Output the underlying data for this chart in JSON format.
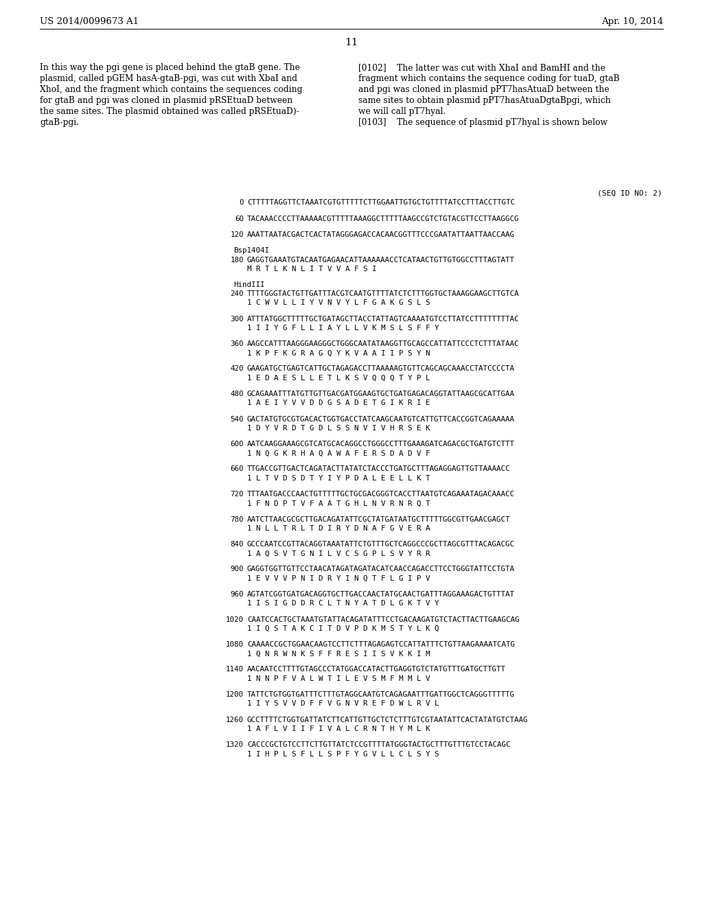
{
  "header_left": "US 2014/0099673 A1",
  "header_right": "Apr. 10, 2014",
  "page_number": "11",
  "body_left_lines": [
    "In this way the pgi gene is placed behind the gtaB gene. The",
    "plasmid, called pGEM hasA-gtaB-pgi, was cut with XbaI and",
    "XhoI, and the fragment which contains the sequences coding",
    "for gtaB and pgi was cloned in plasmid pRSEtuaD between",
    "the same sites. The plasmid obtained was called pRSEtuaD)-",
    "gtaB-pgi."
  ],
  "body_right_lines": [
    "[0102]    The latter was cut with XhaI and BamHI and the",
    "fragment which contains the sequence coding for tuaD, gtaB",
    "and pgi was cloned in plasmid pPT7hasAtuaD between the",
    "same sites to obtain plasmid pPT7hasAtuaDgtaBpgi, which",
    "we will call pT7hyal.",
    "[0103]    The sequence of plasmid pT7hyal is shown below"
  ],
  "seq_id": "(SEQ ID NO: 2)",
  "sequences": [
    {
      "type": "dna",
      "num": "0",
      "seq": "CTTTTTAGGTTCTAAATCGTGTTTTTCTTGGAATTGTGCTGTTTTATCCTTTACCTTGTC"
    },
    {
      "type": "dna",
      "num": "60",
      "seq": "TACAAACCCCTTAAAAACGTTTTTAAAGGCTTTTTAAGCCGTCTGTACGTTCCTTAAGGCG"
    },
    {
      "type": "dna",
      "num": "120",
      "seq": "AAATTAATACGACTCACTATAGGGAGACCACAACGGTTTCCCGAATATTAATTAACCAAG"
    },
    {
      "type": "label",
      "label": "Bsp1404I"
    },
    {
      "type": "dna_aa",
      "num": "180",
      "seq": "GAGGTGAAATGTACAATGAGAACATTAAAAAACCTCATAACTGTTGTGGCCTTTAGTATT",
      "aa_num": "1",
      "aa": "M R T L K N L I T V V A F S I"
    },
    {
      "type": "label",
      "label": "HindIII"
    },
    {
      "type": "dna_aa",
      "num": "240",
      "seq": "TTTTGGGTACTGTTGATTTACGTCAATGTTTTATCTCTTTGGTGCTAAAGGAAGCTTGTCA",
      "aa_num": "1",
      "aa": "1 C W V L L I Y V N V Y L F G A K G S L S"
    },
    {
      "type": "dna_aa",
      "num": "300",
      "seq": "ATTTATGGCTTTTTGCTGATAGCTTACCTATTAGTCAAAATGTCCTTATCCTTTTTTTTAC",
      "aa_num": "1",
      "aa": "1 I I Y G F L L I A Y L L V K M S L S F F Y"
    },
    {
      "type": "dna_aa",
      "num": "360",
      "seq": "AAGCCATTTAAGGGAAGGGCTGGGCAATATAAGGTTGCAGCCATTATTCCCTCTTTATAAC",
      "aa_num": "1",
      "aa": "1 K P F K G R A G Q Y K V A A I I P S Y N"
    },
    {
      "type": "dna_aa",
      "num": "420",
      "seq": "GAAGATGCTGAGTCATTGCTAGAGACCTTAAAAAGTGTTCAGCAGCAAACCTATCCCCTA",
      "aa_num": "1",
      "aa": "1 E D A E S L L E T L K S V Q Q Q T Y P L"
    },
    {
      "type": "dna_aa",
      "num": "480",
      "seq": "GCAGAAATTTATGTTGTTGACGATGGAAGTGCTGATGAGACAGGTATTAAGCGCATTGAA",
      "aa_num": "1",
      "aa": "1 A E I Y V V D D G S A D E T G I K R I E"
    },
    {
      "type": "dna_aa",
      "num": "540",
      "seq": "GACTATGTGCGTGACACTGGTGACCTATCAAGCAATGTCATTGTTCACCGGTCAGAAAAA",
      "aa_num": "1",
      "aa": "1 D Y V R D T G D L S S N V I V H R S E K"
    },
    {
      "type": "dna_aa",
      "num": "600",
      "seq": "AATCAAGGAAAGCGTCATGCACAGGCCTGGGCCTTTGAAAGATCAGACGCTGATGTCTTT",
      "aa_num": "1",
      "aa": "1 N Q G K R H A Q A W A F E R S D A D V F"
    },
    {
      "type": "dna_aa",
      "num": "660",
      "seq": "TTGACCGTTGACTCAGATACTTATATCTACCCTGATGCTTTAGAGGAGTTGTTAAAACC",
      "aa_num": "1",
      "aa": "1 L T V D S D T Y I Y P D A L E E L L K T"
    },
    {
      "type": "dna_aa",
      "num": "720",
      "seq": "TTTAATGACCCAACTGTTTTTGCTGCGACGGGTCACCTTAATGTCAGAAATAGACAAACC",
      "aa_num": "1",
      "aa": "1 F N D P T V F A A T G H L N V R N R Q T"
    },
    {
      "type": "dna_aa",
      "num": "780",
      "seq": "AATCTTAACGCGCTTGACAGATATTCGCTATGATAATGCTTTTTGGCGTTGAACGAGCT",
      "aa_num": "1",
      "aa": "1 N L L T R L T D I R Y D N A F G V E R A"
    },
    {
      "type": "dna_aa",
      "num": "840",
      "seq": "GCCCAATCCGTTACAGGTAAATATTCTGTTTGCTCAGGCCCGCTTAGCGTTTACAGACGC",
      "aa_num": "1",
      "aa": "1 A Q S V T G N I L V C S G P L S V Y R R"
    },
    {
      "type": "dna_aa",
      "num": "900",
      "seq": "GAGGTGGTTGTTCCTAACATAGATAGATACATCAACCAGACCTTCCTGGGTATTCCTGTA",
      "aa_num": "1",
      "aa": "1 E V V V P N I D R Y I N Q T F L G I P V"
    },
    {
      "type": "dna_aa",
      "num": "960",
      "seq": "AGTATCGGTGATGACAGGTGCTTGACCAACTATGCAACTGATTTAGGAAAGACTGTTTAT",
      "aa_num": "1",
      "aa": "1 I S I G D D R C L T N Y A T D L G K T V Y"
    },
    {
      "type": "dna_aa",
      "num": "1020",
      "seq": "CAATCCACTGCTAAATGTATTACAGATATTTCCTGACAAGATGTCTACTTACTTGAAGCAG",
      "aa_num": "1",
      "aa": "1 I Q S T A K C I T D V P D K M S T Y L K Q"
    },
    {
      "type": "dna_aa",
      "num": "1080",
      "seq": "CAAAACCGCTGGAACAAGTCCTTCTTTAGAGAGTCCATTATTTCTGTTAAGAAAATCATG",
      "aa_num": "1",
      "aa": "1 Q N R W N K S F F R E S I I S V K K I M"
    },
    {
      "type": "dna_aa",
      "num": "1140",
      "seq": "AACAATCCTTTTGTAGCCCTATGGACCATACTTGAGGTGTCTATGTTTGATGCTTGTT",
      "aa_num": "1",
      "aa": "1 N N P F V A L W T I L E V S M F M M L V"
    },
    {
      "type": "dna_aa",
      "num": "1200",
      "seq": "TATTCTGTGGTGATTTCTTTGTAGGCAATGTCAGAGAATTTGATTGGCTCAGGGTTTTTG",
      "aa_num": "1",
      "aa": "1 I Y S V V D F F V G N V R E F D W L R V L"
    },
    {
      "type": "dna_aa",
      "num": "1260",
      "seq": "GCCTTTTCTGGTGATTATCTTCATTGTTGCTCTCTTTGTCGTAATATTCACTATATGTCTAAG",
      "aa_num": "1",
      "aa": "1 A F L V I I F I V A L C R N T H Y M L K"
    },
    {
      "type": "dna_aa",
      "num": "1320",
      "seq": "CACCCGCTGTCCTTCTTGTTATCTCCGTTTTATGGGTACTGCTTTGTTTGTCCTACAGC",
      "aa_num": "1",
      "aa": "1 I H P L S F L L S P F Y G V L L C L S Y S"
    }
  ]
}
